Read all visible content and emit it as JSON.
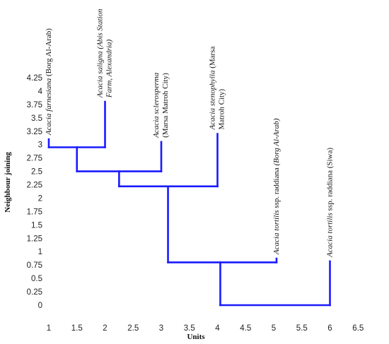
{
  "chart_data": {
    "type": "dendrogram",
    "xlabel": "Units",
    "ylabel": "Neighbour joining",
    "xlim": [
      1,
      6.8
    ],
    "ylim": [
      -0.1,
      4.45
    ],
    "x_ticks": [
      "1",
      "1.5",
      "2",
      "2.5",
      "3",
      "3.5",
      "4",
      "4.5",
      "5",
      "5.5",
      "6",
      "6.5"
    ],
    "y_ticks": [
      "0",
      "0.25",
      "0.5",
      "0.75",
      "1",
      "1.25",
      "1.5",
      "1.75",
      "2",
      "2.25",
      "2.5",
      "2.75",
      "3",
      "3.25",
      "3.5",
      "3.75",
      "4",
      "4.25"
    ],
    "line_color": "#1a1aff",
    "leaves": [
      {
        "x": 1.0,
        "top": 3.1,
        "lines": [
          [
            {
              "t": "Acacia farnesiana",
              "i": true
            },
            {
              "t": "  (Borg Al-Arab)",
              "i": false
            }
          ]
        ]
      },
      {
        "x": 2.0,
        "top": 3.8,
        "lines": [
          [
            {
              "t": "Acacia saligna (Abis Station",
              "i": true
            }
          ],
          [
            {
              "t": "Farm, Alexandria)",
              "i": true
            }
          ]
        ]
      },
      {
        "x": 3.0,
        "top": 3.05,
        "lines": [
          [
            {
              "t": "Acacia sclerosperma",
              "i": true
            }
          ],
          [
            {
              "t": "(Marsa Matroh City)",
              "i": false
            }
          ]
        ]
      },
      {
        "x": 4.0,
        "top": 3.2,
        "lines": [
          [
            {
              "t": "Acacia stenophylla",
              "i": true
            },
            {
              "t": " (Marsa",
              "i": false
            }
          ],
          [
            {
              "t": "Matroh City)",
              "i": false
            }
          ]
        ]
      },
      {
        "x": 5.05,
        "top": 0.87,
        "lines": [
          [
            {
              "t": "Acacia tortilis",
              "i": true
            },
            {
              "t": " ssp. raddiana ",
              "i": false
            },
            {
              "t": "(Borg Al-Arab)",
              "i": true
            }
          ]
        ]
      },
      {
        "x": 6.0,
        "top": 0.82,
        "lines": [
          [
            {
              "t": "Acacia tortilis",
              "i": true
            },
            {
              "t": " ssp. raddiana (Siwa)",
              "i": false
            }
          ]
        ]
      }
    ],
    "segments": [
      {
        "x1": 1.0,
        "y1": 2.95,
        "x2": 2.0,
        "y2": 2.95
      },
      {
        "x1": 2.0,
        "y1": 2.95,
        "x2": 2.0,
        "y2": 3.8
      },
      {
        "x1": 1.0,
        "y1": 2.95,
        "x2": 1.0,
        "y2": 3.1
      },
      {
        "x1": 1.5,
        "y1": 2.95,
        "x2": 1.5,
        "y2": 2.5
      },
      {
        "x1": 1.5,
        "y1": 2.5,
        "x2": 3.0,
        "y2": 2.5
      },
      {
        "x1": 3.0,
        "y1": 2.5,
        "x2": 3.0,
        "y2": 3.05
      },
      {
        "x1": 2.25,
        "y1": 2.5,
        "x2": 2.25,
        "y2": 2.22
      },
      {
        "x1": 2.25,
        "y1": 2.22,
        "x2": 4.0,
        "y2": 2.22
      },
      {
        "x1": 4.0,
        "y1": 2.22,
        "x2": 4.0,
        "y2": 3.2
      },
      {
        "x1": 3.12,
        "y1": 2.22,
        "x2": 3.12,
        "y2": 0.8
      },
      {
        "x1": 3.12,
        "y1": 0.8,
        "x2": 5.05,
        "y2": 0.8
      },
      {
        "x1": 5.05,
        "y1": 0.8,
        "x2": 5.05,
        "y2": 0.87
      },
      {
        "x1": 4.05,
        "y1": 0.8,
        "x2": 4.05,
        "y2": 0.0
      },
      {
        "x1": 4.05,
        "y1": 0.0,
        "x2": 6.0,
        "y2": 0.0
      },
      {
        "x1": 6.0,
        "y1": 0.0,
        "x2": 6.0,
        "y2": 0.82
      }
    ]
  }
}
